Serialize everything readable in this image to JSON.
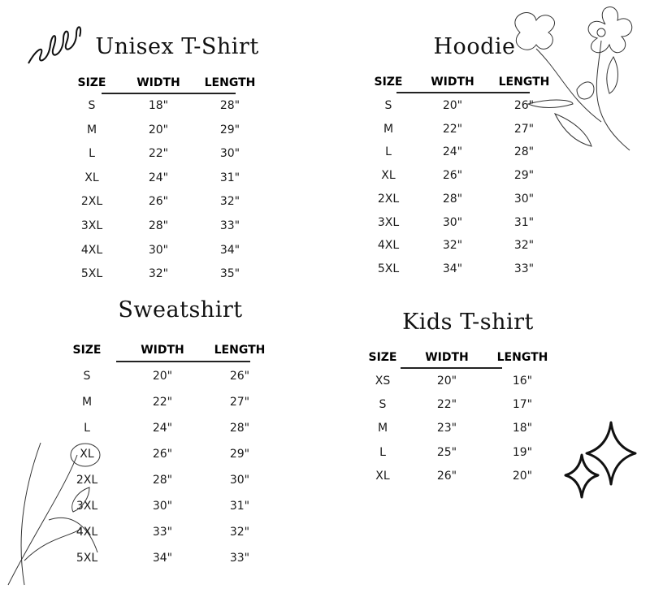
{
  "tables": [
    {
      "title": "Unisex T-Shirt",
      "headers": [
        "SIZE",
        "WIDTH",
        "LENGTH"
      ],
      "rows": [
        [
          "S",
          "18\"",
          "28\""
        ],
        [
          "M",
          "20\"",
          "29\""
        ],
        [
          "L",
          "22\"",
          "30\""
        ],
        [
          "XL",
          "24\"",
          "31\""
        ],
        [
          "2XL",
          "26\"",
          "32\""
        ],
        [
          "3XL",
          "28\"",
          "33\""
        ],
        [
          "4XL",
          "30\"",
          "34\""
        ],
        [
          "5XL",
          "32\"",
          "35\""
        ]
      ]
    },
    {
      "title": "Hoodie",
      "headers": [
        "SIZE",
        "WIDTH",
        "LENGTH"
      ],
      "rows": [
        [
          "S",
          "20\"",
          "26\""
        ],
        [
          "M",
          "22\"",
          "27\""
        ],
        [
          "L",
          "24\"",
          "28\""
        ],
        [
          "XL",
          "26\"",
          "29\""
        ],
        [
          "2XL",
          "28\"",
          "30\""
        ],
        [
          "3XL",
          "30\"",
          "31\""
        ],
        [
          "4XL",
          "32\"",
          "32\""
        ],
        [
          "5XL",
          "34\"",
          "33\""
        ]
      ]
    },
    {
      "title": "Sweatshirt",
      "headers": [
        "SIZE",
        "WIDTH",
        "LENGTH"
      ],
      "rows": [
        [
          "S",
          "20\"",
          "26\""
        ],
        [
          "M",
          "22\"",
          "27\""
        ],
        [
          "L",
          "24\"",
          "28\""
        ],
        [
          "XL",
          "26\"",
          "29\""
        ],
        [
          "2XL",
          "28\"",
          "30\""
        ],
        [
          "3XL",
          "30\"",
          "31\""
        ],
        [
          "4XL",
          "33\"",
          "32\""
        ],
        [
          "5XL",
          "34\"",
          "33\""
        ]
      ]
    },
    {
      "title": "Kids T-shirt",
      "headers": [
        "SIZE",
        "WIDTH",
        "LENGTH"
      ],
      "rows": [
        [
          "XS",
          "20\"",
          "16\""
        ],
        [
          "S",
          "22\"",
          "17\""
        ],
        [
          "M",
          "23\"",
          "18\""
        ],
        [
          "L",
          "25\"",
          "19\""
        ],
        [
          "XL",
          "26\"",
          "20\""
        ]
      ]
    }
  ],
  "decorations": [
    "swirl-doodle",
    "flower-drawing-top-right",
    "flower-drawing-bottom-left",
    "sparkle-stars"
  ],
  "colors": {
    "text": "#111111",
    "background": "#ffffff"
  }
}
